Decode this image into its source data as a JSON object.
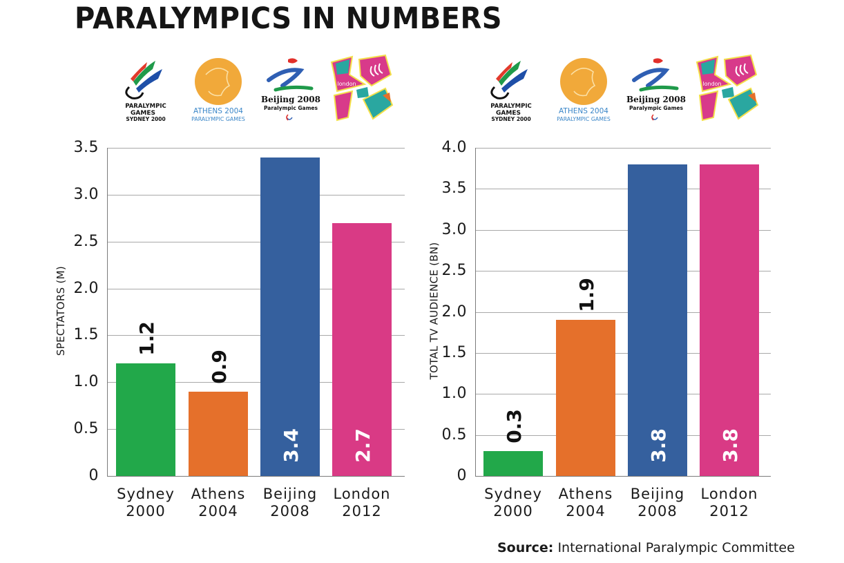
{
  "title": "PARALYMPICS IN NUMBERS",
  "logos": [
    {
      "name": "sydney-2000-logo",
      "line1": "PARALYMPIC",
      "line2": "GAMES",
      "line3": "SYDNEY 2000"
    },
    {
      "name": "athens-2004-logo",
      "line1": "ATHENS 2004",
      "line2": "PARALYMPIC GAMES"
    },
    {
      "name": "beijing-2008-logo",
      "line1": "Beijing 2008",
      "line2": "Paralympic Games"
    },
    {
      "name": "london-2012-logo",
      "line1": "london"
    }
  ],
  "colors": {
    "sydney": "#22a84a",
    "athens": "#e5702b",
    "beijing": "#35609e",
    "london": "#d93a85",
    "grid": "#a8a8a8"
  },
  "source": {
    "label": "Source:",
    "text": "International Paralympic Committee"
  },
  "chart_data": [
    {
      "type": "bar",
      "title": "Spectators",
      "xlabel": "",
      "ylabel": "SPECTATORS (M)",
      "ylim": [
        0,
        3.5
      ],
      "yticks": [
        "0",
        "0.5",
        "1.0",
        "1.5",
        "2.0",
        "2.5",
        "3.0",
        "3.5"
      ],
      "grid": true,
      "categories": [
        "Sydney 2000",
        "Athens 2004",
        "Beijing 2008",
        "London 2012"
      ],
      "category_lines": [
        [
          "Sydney",
          "2000"
        ],
        [
          "Athens",
          "2004"
        ],
        [
          "Beijing",
          "2008"
        ],
        [
          "London",
          "2012"
        ]
      ],
      "values": [
        1.2,
        0.9,
        3.4,
        2.7
      ],
      "labels": [
        "1.2",
        "0.9",
        "3.4",
        "2.7"
      ]
    },
    {
      "type": "bar",
      "title": "Total TV Audience",
      "xlabel": "",
      "ylabel": "TOTAL TV AUDIENCE (BN)",
      "ylim": [
        0,
        4.0
      ],
      "yticks": [
        "0",
        "0.5",
        "1.0",
        "1.5",
        "2.0",
        "2.5",
        "3.0",
        "3.5",
        "4.0"
      ],
      "grid": true,
      "categories": [
        "Sydney 2000",
        "Athens 2004",
        "Beijing 2008",
        "London 2012"
      ],
      "category_lines": [
        [
          "Sydney",
          "2000"
        ],
        [
          "Athens",
          "2004"
        ],
        [
          "Beijing",
          "2008"
        ],
        [
          "London",
          "2012"
        ]
      ],
      "values": [
        0.3,
        1.9,
        3.8,
        3.8
      ],
      "labels": [
        "0.3",
        "1.9",
        "3.8",
        "3.8"
      ]
    }
  ]
}
